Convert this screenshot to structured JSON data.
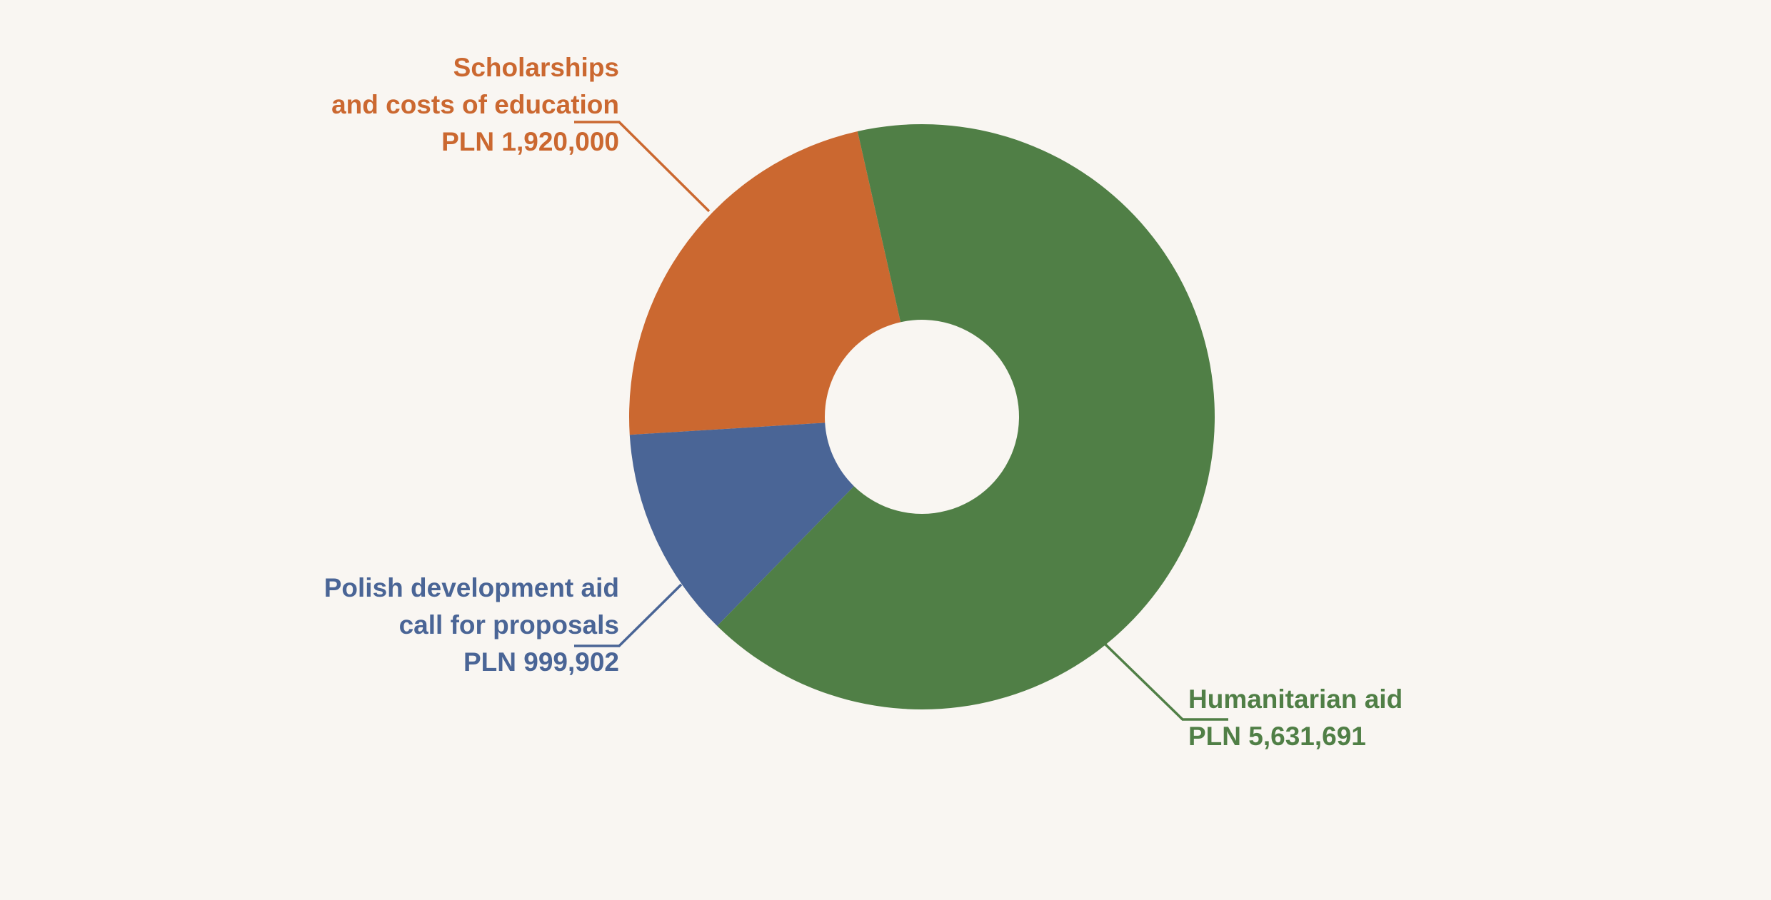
{
  "chart_data": {
    "type": "donut",
    "categories": [
      "Scholarships and costs of education",
      "Polish development aid call for proposals",
      "Humanitarian aid"
    ],
    "values": [
      1920000,
      999902,
      5631691
    ],
    "value_labels": [
      "PLN 1,920,000",
      "PLN 999,902",
      "PLN 5,631,691"
    ],
    "colors": [
      "#cb6830",
      "#4a6596",
      "#507f46"
    ]
  }
}
